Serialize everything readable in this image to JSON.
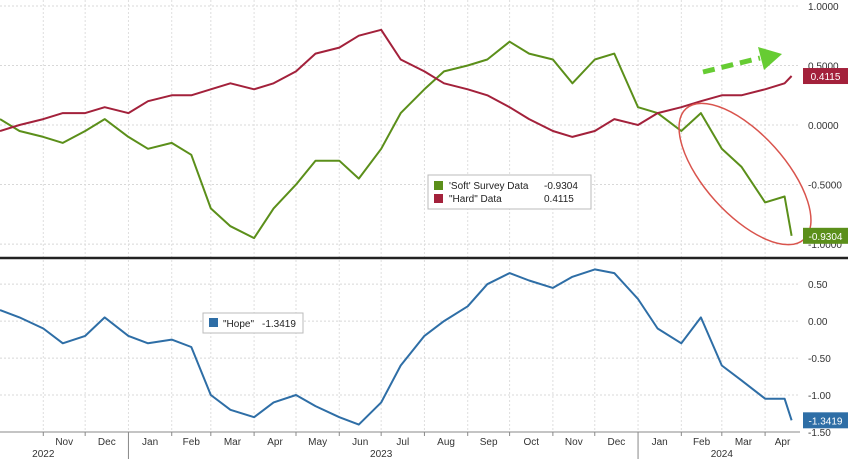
{
  "chart_data": [
    {
      "type": "line",
      "panel": "top",
      "ylim": [
        -1.1,
        1.05
      ],
      "yticks": [
        1.0,
        0.5,
        0.0,
        -0.5,
        -1.0
      ],
      "ytick_labels": [
        "1.0000",
        "0.5000",
        "0.0000",
        "-0.5000",
        "-1.0000"
      ],
      "grid": true,
      "legend_position": "center-right",
      "series": [
        {
          "name": "'Soft' Survey Data",
          "value_label": "-0.9304",
          "last_value": -0.9304,
          "color": "#5b8f1a",
          "x": [
            "2022-10-01",
            "2022-10-15",
            "2022-11-01",
            "2022-11-15",
            "2022-12-01",
            "2022-12-15",
            "2023-01-01",
            "2023-01-15",
            "2023-02-01",
            "2023-02-15",
            "2023-03-01",
            "2023-03-15",
            "2023-04-01",
            "2023-04-15",
            "2023-05-01",
            "2023-05-15",
            "2023-06-01",
            "2023-06-15",
            "2023-07-01",
            "2023-07-15",
            "2023-08-01",
            "2023-08-15",
            "2023-09-01",
            "2023-09-15",
            "2023-10-01",
            "2023-10-15",
            "2023-11-01",
            "2023-11-15",
            "2023-12-01",
            "2023-12-15",
            "2024-01-01",
            "2024-01-15",
            "2024-02-01",
            "2024-02-15",
            "2024-03-01",
            "2024-03-15",
            "2024-04-01",
            "2024-04-15",
            "2024-04-20"
          ],
          "y": [
            0.05,
            -0.05,
            -0.1,
            -0.15,
            -0.05,
            0.05,
            -0.1,
            -0.2,
            -0.15,
            -0.25,
            -0.7,
            -0.85,
            -0.95,
            -0.7,
            -0.5,
            -0.3,
            -0.3,
            -0.45,
            -0.2,
            0.1,
            0.3,
            0.45,
            0.5,
            0.55,
            0.7,
            0.6,
            0.55,
            0.35,
            0.55,
            0.6,
            0.15,
            0.1,
            -0.05,
            0.1,
            -0.2,
            -0.35,
            -0.65,
            -0.6,
            -0.9304
          ]
        },
        {
          "name": "\"Hard\" Data",
          "value_label": "0.4115",
          "last_value": 0.4115,
          "color": "#a3213b",
          "x": [
            "2022-10-01",
            "2022-10-15",
            "2022-11-01",
            "2022-11-15",
            "2022-12-01",
            "2022-12-15",
            "2023-01-01",
            "2023-01-15",
            "2023-02-01",
            "2023-02-15",
            "2023-03-01",
            "2023-03-15",
            "2023-04-01",
            "2023-04-15",
            "2023-05-01",
            "2023-05-15",
            "2023-06-01",
            "2023-06-15",
            "2023-07-01",
            "2023-07-15",
            "2023-08-01",
            "2023-08-15",
            "2023-09-01",
            "2023-09-15",
            "2023-10-01",
            "2023-10-15",
            "2023-11-01",
            "2023-11-15",
            "2023-12-01",
            "2023-12-15",
            "2024-01-01",
            "2024-01-15",
            "2024-02-01",
            "2024-02-15",
            "2024-03-01",
            "2024-03-15",
            "2024-04-01",
            "2024-04-15",
            "2024-04-20"
          ],
          "y": [
            -0.05,
            0.0,
            0.05,
            0.1,
            0.1,
            0.15,
            0.1,
            0.2,
            0.25,
            0.25,
            0.3,
            0.35,
            0.3,
            0.35,
            0.45,
            0.6,
            0.65,
            0.75,
            0.8,
            0.55,
            0.45,
            0.35,
            0.3,
            0.25,
            0.15,
            0.05,
            -0.05,
            -0.1,
            -0.05,
            0.05,
            0.0,
            0.1,
            0.15,
            0.2,
            0.25,
            0.25,
            0.3,
            0.35,
            0.4115
          ]
        }
      ]
    },
    {
      "type": "line",
      "panel": "bottom",
      "ylim": [
        -1.5,
        0.8
      ],
      "yticks": [
        0.5,
        0.0,
        -0.5,
        -1.0,
        -1.5
      ],
      "ytick_labels": [
        "0.50",
        "0.00",
        "-0.50",
        "-1.00",
        "-1.50"
      ],
      "grid": true,
      "legend_position": "top-left",
      "series": [
        {
          "name": "\"Hope\"",
          "value_label": "-1.3419",
          "last_value": -1.3419,
          "color": "#2e6ea6",
          "x": [
            "2022-10-01",
            "2022-10-15",
            "2022-11-01",
            "2022-11-15",
            "2022-12-01",
            "2022-12-15",
            "2023-01-01",
            "2023-01-15",
            "2023-02-01",
            "2023-02-15",
            "2023-03-01",
            "2023-03-15",
            "2023-04-01",
            "2023-04-15",
            "2023-05-01",
            "2023-05-15",
            "2023-06-01",
            "2023-06-15",
            "2023-07-01",
            "2023-07-15",
            "2023-08-01",
            "2023-08-15",
            "2023-09-01",
            "2023-09-15",
            "2023-10-01",
            "2023-10-15",
            "2023-11-01",
            "2023-11-15",
            "2023-12-01",
            "2023-12-15",
            "2024-01-01",
            "2024-01-15",
            "2024-02-01",
            "2024-02-15",
            "2024-03-01",
            "2024-03-15",
            "2024-04-01",
            "2024-04-15",
            "2024-04-20"
          ],
          "y": [
            0.15,
            0.05,
            -0.1,
            -0.3,
            -0.2,
            0.05,
            -0.2,
            -0.3,
            -0.25,
            -0.35,
            -1.0,
            -1.2,
            -1.3,
            -1.1,
            -1.0,
            -1.15,
            -1.3,
            -1.4,
            -1.1,
            -0.6,
            -0.2,
            0.0,
            0.2,
            0.5,
            0.65,
            0.55,
            0.45,
            0.6,
            0.7,
            0.65,
            0.3,
            -0.1,
            -0.3,
            0.05,
            -0.6,
            -0.8,
            -1.05,
            -1.05,
            -1.3419
          ]
        }
      ]
    }
  ],
  "x_axis": {
    "months": [
      {
        "label": "Nov",
        "date": "2022-11-01"
      },
      {
        "label": "Dec",
        "date": "2022-12-01"
      },
      {
        "label": "Jan",
        "date": "2023-01-01"
      },
      {
        "label": "Feb",
        "date": "2023-02-01"
      },
      {
        "label": "Mar",
        "date": "2023-03-01"
      },
      {
        "label": "Apr",
        "date": "2023-04-01"
      },
      {
        "label": "May",
        "date": "2023-05-01"
      },
      {
        "label": "Jun",
        "date": "2023-06-01"
      },
      {
        "label": "Jul",
        "date": "2023-07-01"
      },
      {
        "label": "Aug",
        "date": "2023-08-01"
      },
      {
        "label": "Sep",
        "date": "2023-09-01"
      },
      {
        "label": "Oct",
        "date": "2023-10-01"
      },
      {
        "label": "Nov",
        "date": "2023-11-01"
      },
      {
        "label": "Dec",
        "date": "2023-12-01"
      },
      {
        "label": "Jan",
        "date": "2024-01-01"
      },
      {
        "label": "Feb",
        "date": "2024-02-01"
      },
      {
        "label": "Mar",
        "date": "2024-03-01"
      },
      {
        "label": "Apr",
        "date": "2024-04-01"
      }
    ],
    "years": [
      {
        "label": "2022",
        "date": "2022-11-01"
      },
      {
        "label": "2023",
        "date": "2023-07-01"
      },
      {
        "label": "2024",
        "date": "2024-03-01"
      }
    ],
    "year_boundaries": [
      "2023-01-01",
      "2024-01-01"
    ]
  },
  "annotations": {
    "arrow_color": "#66cc33",
    "ellipse_color": "#d9544d"
  }
}
